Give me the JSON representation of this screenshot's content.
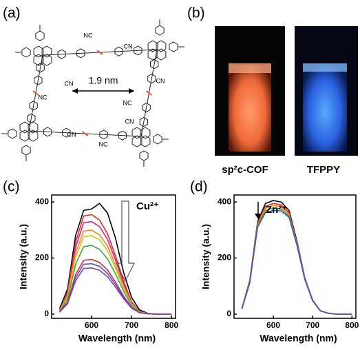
{
  "figure": {
    "panels": [
      "(a)",
      "(b)",
      "(c)",
      "(d)"
    ],
    "structure": {
      "distance": "1.9 nm",
      "labels": [
        "NC",
        "CN",
        "CN",
        "NC",
        "CN",
        "NC",
        "CN",
        "NC",
        "CN"
      ]
    },
    "photos": [
      {
        "label": "sp²c-COF"
      },
      {
        "label": "TFPPY"
      }
    ]
  },
  "chart_data": [
    {
      "type": "line",
      "xlabel": "Wavelength (nm)",
      "ylabel": "Intensity (a.u.)",
      "annotation": "Cu²⁺",
      "x": [
        520,
        540,
        560,
        580,
        600,
        620,
        640,
        660,
        680,
        700,
        720,
        740,
        760,
        780,
        800
      ],
      "xlim": [
        500,
        810
      ],
      "ylim": [
        -15,
        425
      ],
      "xticks": [
        600,
        700,
        800
      ],
      "yticks": [
        0,
        200,
        400
      ],
      "series": [
        {
          "color": "#000000",
          "values": [
            20,
            90,
            280,
            370,
            375,
            395,
            360,
            270,
            150,
            60,
            15,
            3,
            0,
            0,
            0
          ]
        },
        {
          "color": "#e8262a",
          "values": [
            15,
            79,
            256,
            350,
            355,
            335,
            286,
            207,
            118,
            44,
            10,
            2,
            0,
            0,
            0
          ]
        },
        {
          "color": "#e0208a",
          "values": [
            14,
            73,
            238,
            326,
            330,
            312,
            266,
            193,
            110,
            41,
            9,
            2,
            0,
            0,
            0
          ]
        },
        {
          "color": "#f08a24",
          "values": [
            12,
            67,
            217,
            296,
            300,
            283,
            242,
            175,
            100,
            37,
            8,
            2,
            0,
            0,
            0
          ]
        },
        {
          "color": "#c8c820",
          "values": [
            12,
            62,
            202,
            276,
            280,
            265,
            226,
            163,
            93,
            35,
            8,
            2,
            0,
            0,
            0
          ]
        },
        {
          "color": "#3aaa35",
          "values": [
            10,
            54,
            177,
            241,
            245,
            231,
            197,
            143,
            82,
            31,
            7,
            1,
            0,
            0,
            0
          ]
        },
        {
          "color": "#d42a3a",
          "values": [
            8,
            43,
            141,
            192,
            195,
            184,
            157,
            114,
            65,
            24,
            5,
            1,
            0,
            0,
            0
          ]
        },
        {
          "color": "#4a50c8",
          "values": [
            8,
            40,
            130,
            178,
            180,
            170,
            145,
            105,
            60,
            22,
            5,
            1,
            0,
            0,
            0
          ]
        },
        {
          "color": "#8a3cb0",
          "values": [
            7,
            37,
            119,
            163,
            165,
            156,
            133,
            96,
            55,
            21,
            5,
            1,
            0,
            0,
            0
          ]
        }
      ]
    },
    {
      "type": "line",
      "xlabel": "Wavelength (nm)",
      "ylabel": "Intensity (a.u.)",
      "annotation": "Zn²⁺",
      "x": [
        520,
        540,
        560,
        580,
        600,
        620,
        640,
        660,
        680,
        700,
        720,
        740,
        760,
        780,
        800
      ],
      "xlim": [
        500,
        810
      ],
      "ylim": [
        -15,
        425
      ],
      "xticks": [
        600,
        700,
        800
      ],
      "yticks": [
        0,
        200,
        400
      ],
      "series": [
        {
          "color": "#000000",
          "values": [
            20,
            120,
            330,
            395,
            405,
            400,
            370,
            260,
            130,
            50,
            12,
            3,
            0,
            0,
            0
          ]
        },
        {
          "color": "#e8262a",
          "values": [
            20,
            118,
            325,
            385,
            395,
            390,
            362,
            255,
            128,
            49,
            12,
            3,
            0,
            0,
            0
          ]
        },
        {
          "color": "#f08a24",
          "values": [
            19,
            115,
            320,
            378,
            388,
            383,
            356,
            252,
            127,
            49,
            12,
            3,
            0,
            0,
            0
          ]
        },
        {
          "color": "#3aaa35",
          "values": [
            19,
            112,
            315,
            370,
            378,
            375,
            350,
            248,
            125,
            48,
            11,
            3,
            0,
            0,
            0
          ]
        },
        {
          "color": "#4a50c8",
          "values": [
            18,
            110,
            310,
            362,
            370,
            368,
            345,
            245,
            123,
            47,
            11,
            3,
            0,
            0,
            0
          ]
        }
      ]
    }
  ]
}
